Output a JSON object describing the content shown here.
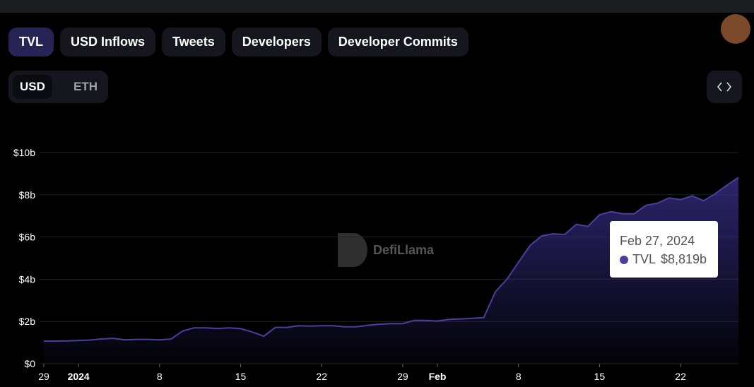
{
  "tabs": [
    "TVL",
    "USD Inflows",
    "Tweets",
    "Developers",
    "Developer Commits"
  ],
  "currency_toggle": [
    "USD",
    "ETH"
  ],
  "watermark": "DefiLlama",
  "tooltip": {
    "date": "Feb 27, 2024",
    "series": "TVL",
    "value": "$8,819b"
  },
  "chart_data": {
    "type": "area",
    "series": [
      {
        "name": "TVL",
        "color": "#4b3f9e",
        "values": [
          1.07,
          1.07,
          1.08,
          1.1,
          1.12,
          1.17,
          1.2,
          1.13,
          1.15,
          1.15,
          1.13,
          1.17,
          1.55,
          1.7,
          1.7,
          1.67,
          1.7,
          1.66,
          1.5,
          1.3,
          1.72,
          1.72,
          1.8,
          1.78,
          1.8,
          1.8,
          1.75,
          1.75,
          1.82,
          1.87,
          1.9,
          1.9,
          2.05,
          2.05,
          2.02,
          2.1,
          2.12,
          2.15,
          2.18,
          3.4,
          4.0,
          4.8,
          5.6,
          6.05,
          6.15,
          6.12,
          6.6,
          6.5,
          7.05,
          7.2,
          7.1,
          7.1,
          7.5,
          7.6,
          7.85,
          7.77,
          7.95,
          7.72,
          8.05,
          8.45,
          8.819
        ]
      }
    ],
    "x": [
      "2023-12-29",
      "2023-12-30",
      "2023-12-31",
      "2024-01-01",
      "2024-01-02",
      "2024-01-03",
      "2024-01-04",
      "2024-01-05",
      "2024-01-06",
      "2024-01-07",
      "2024-01-08",
      "2024-01-09",
      "2024-01-10",
      "2024-01-11",
      "2024-01-12",
      "2024-01-13",
      "2024-01-14",
      "2024-01-15",
      "2024-01-16",
      "2024-01-17",
      "2024-01-18",
      "2024-01-19",
      "2024-01-20",
      "2024-01-21",
      "2024-01-22",
      "2024-01-23",
      "2024-01-24",
      "2024-01-25",
      "2024-01-26",
      "2024-01-27",
      "2024-01-28",
      "2024-01-29",
      "2024-01-30",
      "2024-01-31",
      "2024-02-01",
      "2024-02-02",
      "2024-02-03",
      "2024-02-04",
      "2024-02-05",
      "2024-02-06",
      "2024-02-07",
      "2024-02-08",
      "2024-02-09",
      "2024-02-10",
      "2024-02-11",
      "2024-02-12",
      "2024-02-13",
      "2024-02-14",
      "2024-02-15",
      "2024-02-16",
      "2024-02-17",
      "2024-02-18",
      "2024-02-19",
      "2024-02-20",
      "2024-02-21",
      "2024-02-22",
      "2024-02-23",
      "2024-02-24",
      "2024-02-25",
      "2024-02-26",
      "2024-02-27"
    ],
    "xlim": [
      "2023-12-29",
      "2024-02-27"
    ],
    "xticks": [
      {
        "value": "2023-12-29",
        "label": "29"
      },
      {
        "value": "2024-01-01",
        "label": "2024"
      },
      {
        "value": "2024-01-08",
        "label": "8"
      },
      {
        "value": "2024-01-15",
        "label": "15"
      },
      {
        "value": "2024-01-22",
        "label": "22"
      },
      {
        "value": "2024-01-29",
        "label": "29"
      },
      {
        "value": "2024-02-01",
        "label": "Feb"
      },
      {
        "value": "2024-02-08",
        "label": "8"
      },
      {
        "value": "2024-02-15",
        "label": "15"
      },
      {
        "value": "2024-02-22",
        "label": "22"
      }
    ],
    "ylim": [
      0,
      10
    ],
    "yticks": [
      {
        "value": 0,
        "label": "$0"
      },
      {
        "value": 2,
        "label": "$2b"
      },
      {
        "value": 4,
        "label": "$4b"
      },
      {
        "value": 6,
        "label": "$6b"
      },
      {
        "value": 8,
        "label": "$8b"
      },
      {
        "value": 10,
        "label": "$10b"
      }
    ],
    "grid": true
  }
}
